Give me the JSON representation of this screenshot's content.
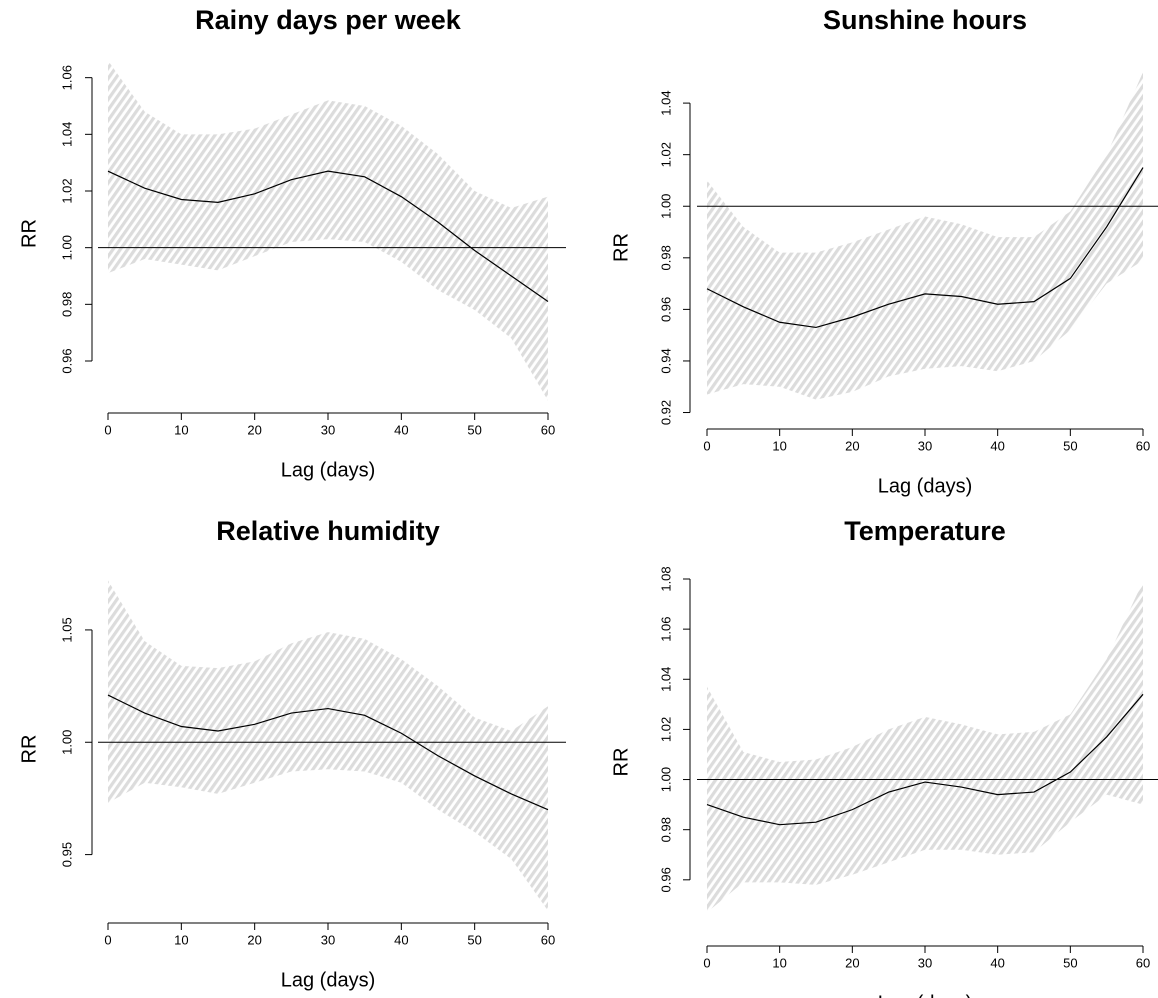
{
  "chart_data": [
    {
      "type": "line",
      "title": "Rainy days per week",
      "xlabel": "Lag (days)",
      "ylabel": "RR",
      "x": [
        0,
        5,
        10,
        15,
        20,
        25,
        30,
        35,
        40,
        45,
        50,
        55,
        60
      ],
      "values": [
        1.027,
        1.021,
        1.017,
        1.016,
        1.019,
        1.024,
        1.027,
        1.025,
        1.018,
        1.009,
        0.999,
        0.99,
        0.981
      ],
      "ci_lower": [
        0.991,
        0.996,
        0.994,
        0.992,
        0.997,
        1.002,
        1.003,
        1.002,
        0.995,
        0.985,
        0.978,
        0.968,
        0.946
      ],
      "ci_upper": [
        1.066,
        1.048,
        1.04,
        1.04,
        1.042,
        1.047,
        1.052,
        1.05,
        1.043,
        1.033,
        1.02,
        1.014,
        1.018
      ],
      "hline": 1,
      "color": "#000000",
      "band_color": "#dcdcdc",
      "xlim": [
        0,
        60
      ],
      "xticks": [
        0,
        10,
        20,
        30,
        40,
        50,
        60
      ],
      "ylim": [
        0.942,
        1.068
      ],
      "yticks": [
        0.96,
        0.98,
        {
          "value": 1,
          "label": "1.00"
        },
        1.02,
        1.04,
        1.06
      ]
    },
    {
      "type": "line",
      "title": "Sunshine hours",
      "xlabel": "Lag (days)",
      "ylabel": "RR",
      "x": [
        0,
        5,
        10,
        15,
        20,
        25,
        30,
        35,
        40,
        45,
        50,
        55,
        60
      ],
      "values": [
        0.968,
        0.961,
        0.955,
        0.953,
        0.957,
        0.962,
        0.966,
        0.965,
        0.962,
        0.963,
        0.972,
        0.992,
        1.015
      ],
      "ci_lower": [
        0.927,
        0.931,
        0.93,
        0.925,
        0.928,
        0.934,
        0.937,
        0.938,
        0.936,
        0.94,
        0.952,
        0.97,
        0.979
      ],
      "ci_upper": [
        1.01,
        0.992,
        0.982,
        0.982,
        0.986,
        0.991,
        0.996,
        0.993,
        0.988,
        0.988,
        0.998,
        1.02,
        1.052
      ],
      "hline": 1,
      "color": "#000000",
      "band_color": "#dcdcdc",
      "xlim": [
        0,
        60
      ],
      "xticks": [
        0,
        10,
        20,
        30,
        40,
        50,
        60
      ],
      "ylim": [
        0.914,
        1.054
      ],
      "yticks": [
        0.92,
        0.94,
        0.96,
        0.98,
        {
          "value": 1,
          "label": "1.00"
        },
        1.02,
        1.04
      ]
    },
    {
      "type": "line",
      "title": "Relative humidity",
      "xlabel": "Lag (days)",
      "ylabel": "RR",
      "x": [
        0,
        5,
        10,
        15,
        20,
        25,
        30,
        35,
        40,
        45,
        50,
        55,
        60
      ],
      "values": [
        1.021,
        1.013,
        1.007,
        1.005,
        1.008,
        1.013,
        1.015,
        1.012,
        1.004,
        0.994,
        0.985,
        0.977,
        0.97
      ],
      "ci_lower": [
        0.973,
        0.982,
        0.98,
        0.977,
        0.982,
        0.987,
        0.988,
        0.987,
        0.982,
        0.97,
        0.96,
        0.948,
        0.925
      ],
      "ci_upper": [
        1.072,
        1.045,
        1.034,
        1.033,
        1.036,
        1.044,
        1.049,
        1.046,
        1.037,
        1.025,
        1.011,
        1.005,
        1.016
      ],
      "hline": 1,
      "color": "#000000",
      "band_color": "#dcdcdc",
      "xlim": [
        0,
        60
      ],
      "xticks": [
        0,
        10,
        20,
        30,
        40,
        50,
        60
      ],
      "ylim": [
        0.92,
        1.074
      ],
      "yticks": [
        0.95,
        {
          "value": 1,
          "label": "1.00"
        },
        1.05
      ]
    },
    {
      "type": "line",
      "title": "Temperature",
      "xlabel": "Lag (days)",
      "ylabel": "RR",
      "x": [
        0,
        5,
        10,
        15,
        20,
        25,
        30,
        35,
        40,
        45,
        50,
        55,
        60
      ],
      "values": [
        0.99,
        0.985,
        0.982,
        0.983,
        0.988,
        0.995,
        0.999,
        0.997,
        0.994,
        0.995,
        1.003,
        1.017,
        1.034
      ],
      "ci_lower": [
        0.947,
        0.959,
        0.959,
        0.958,
        0.962,
        0.967,
        0.972,
        0.972,
        0.97,
        0.971,
        0.983,
        0.994,
        0.99
      ],
      "ci_upper": [
        1.037,
        1.011,
        1.007,
        1.008,
        1.013,
        1.02,
        1.025,
        1.022,
        1.018,
        1.019,
        1.026,
        1.048,
        1.079
      ],
      "hline": 1,
      "color": "#000000",
      "band_color": "#dcdcdc",
      "xlim": [
        0,
        60
      ],
      "xticks": [
        0,
        10,
        20,
        30,
        40,
        50,
        60
      ],
      "ylim": [
        0.934,
        1.08
      ],
      "yticks": [
        0.96,
        0.98,
        {
          "value": 1,
          "label": "1.00"
        },
        1.02,
        1.04,
        1.06,
        1.08
      ]
    }
  ]
}
